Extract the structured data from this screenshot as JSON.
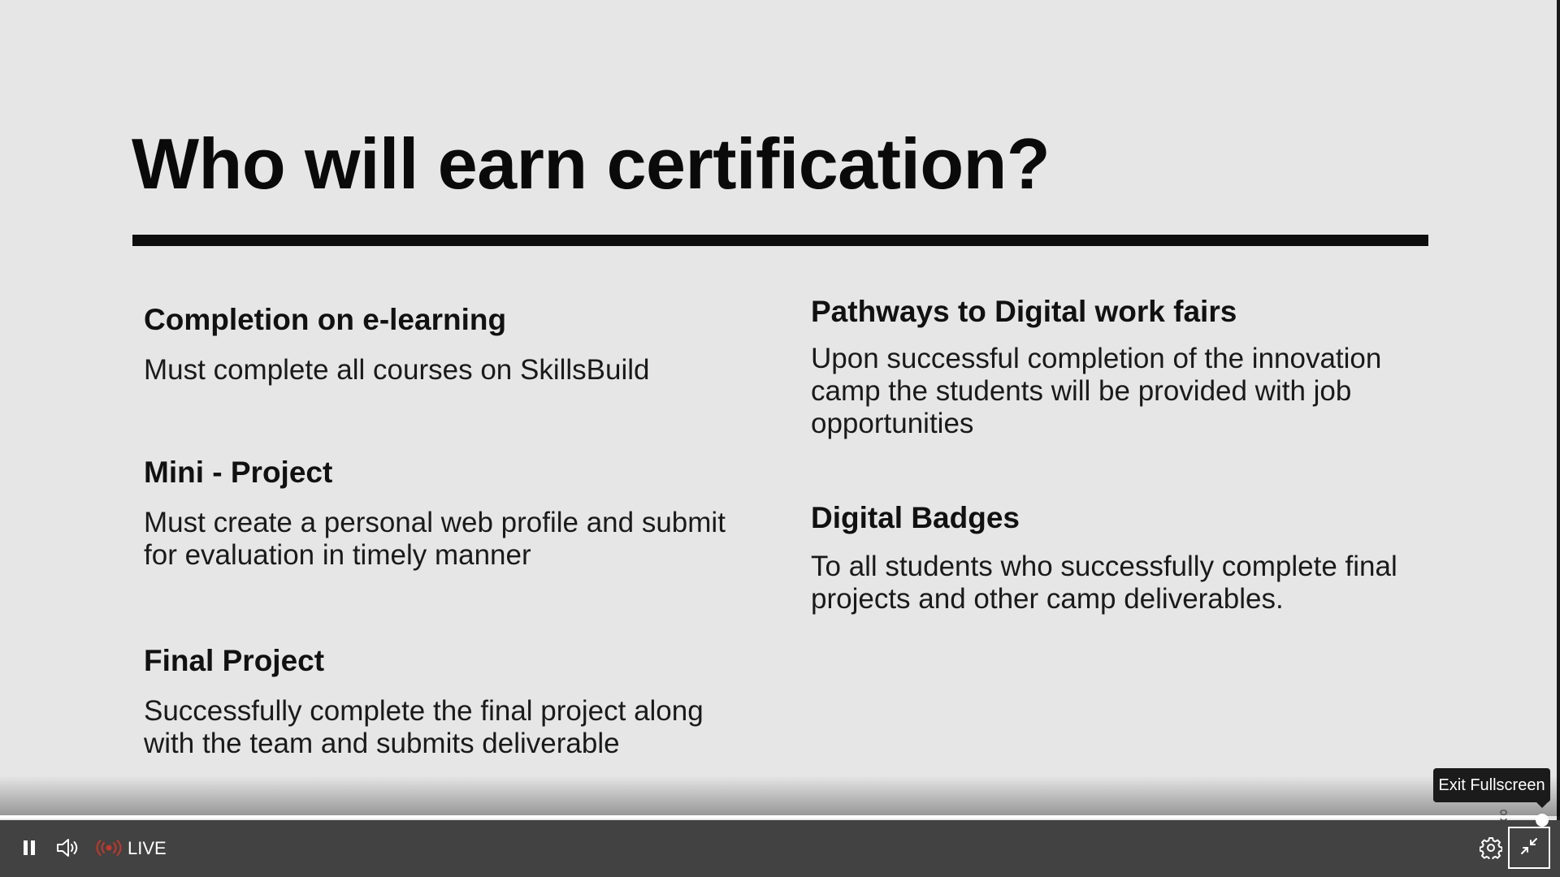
{
  "slide": {
    "title": "Who will earn certification?",
    "left_sections": [
      {
        "heading": "Completion on e-learning",
        "body": "Must complete all courses on SkillsBuild"
      },
      {
        "heading": "Mini - Project",
        "body": "Must create a personal web profile and submit for evaluation in timely manner"
      },
      {
        "heading": "Final Project",
        "body": "Successfully complete the final project along with the team and submits deliverable"
      }
    ],
    "right_sections": [
      {
        "heading": "Pathways to Digital work fairs",
        "body": "Upon successful completion of the innovation camp the students will be provided with job opportunities"
      },
      {
        "heading": "Digital Badges",
        "body": "To all students who successfully complete final projects and other camp deliverables."
      }
    ],
    "stray_glyph": "8"
  },
  "player": {
    "live_label": "LIVE",
    "tooltip": "Exit Fullscreen",
    "progress_fraction": 1.0,
    "live_color": "#c0392b",
    "icons": {
      "pause": "pause-icon",
      "volume": "volume-icon",
      "live": "live-broadcast-icon",
      "settings": "gear-icon",
      "exit_fullscreen": "exit-fullscreen-icon"
    }
  }
}
